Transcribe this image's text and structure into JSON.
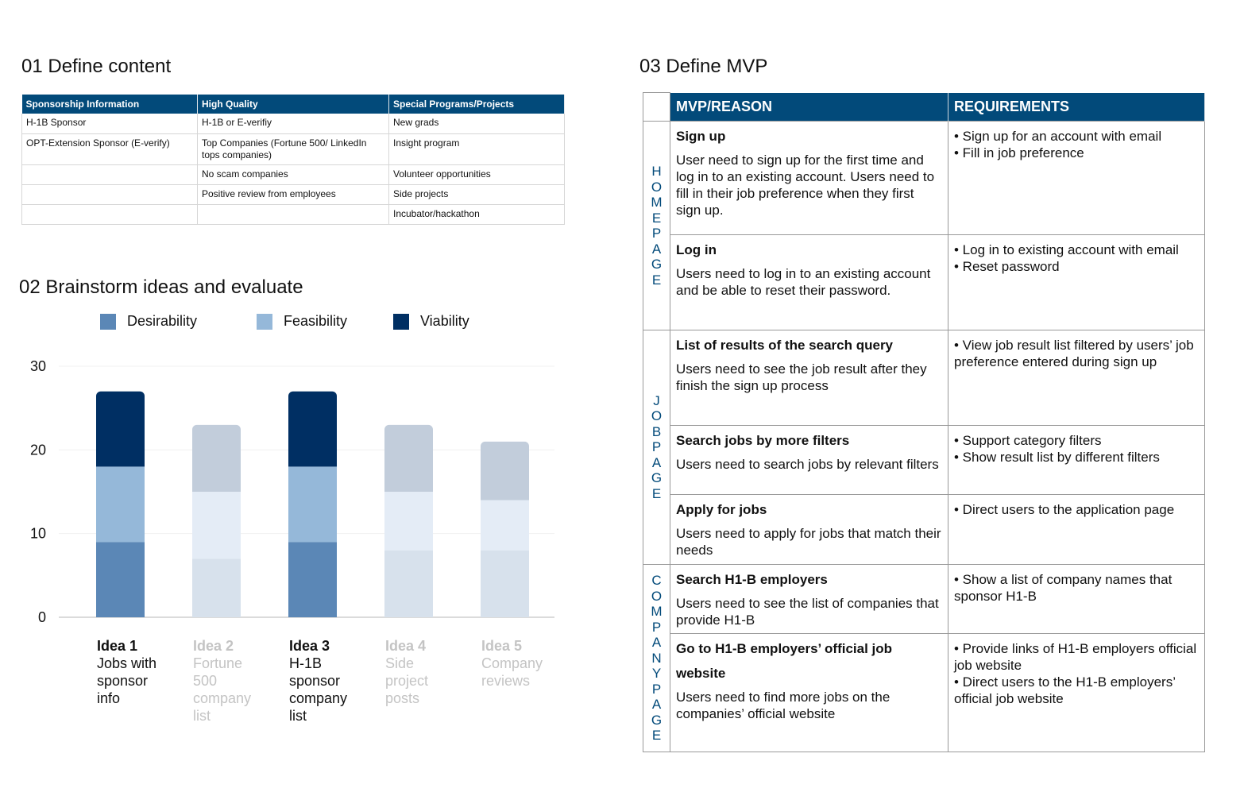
{
  "sections": {
    "s01": "01 Define content",
    "s02": "02 Brainstorm ideas and evaluate",
    "s03": "03 Define MVP"
  },
  "content_table": {
    "headers": [
      "Sponsorship Information",
      "High Quality",
      "Special Programs/Projects"
    ],
    "rows": [
      [
        "H-1B Sponsor",
        "H-1B or E-verifiy",
        "New grads"
      ],
      [
        "OPT-Extension Sponsor (E-verify)",
        "Top Companies (Fortune 500/ LinkedIn tops companies)",
        "Insight program"
      ],
      [
        "",
        "No scam companies",
        "Volunteer opportunities"
      ],
      [
        "",
        "Positive review from employees",
        "Side projects"
      ],
      [
        "",
        "",
        "Incubator/hackathon"
      ]
    ]
  },
  "legend": [
    {
      "label": "Desirability",
      "color": "#5b87b6"
    },
    {
      "label": "Feasibility",
      "color": "#95b8d9"
    },
    {
      "label": "Viability",
      "color": "#002f63"
    }
  ],
  "chart_data": {
    "type": "bar",
    "stacked": true,
    "categories": [
      "Idea 1",
      "Idea 2",
      "Idea 3",
      "Idea 4",
      "Idea 5"
    ],
    "descriptions": [
      "Jobs with sponsor info",
      "Fortune 500 company list",
      "H-1B sponsor company list",
      "Side project posts",
      "Company reviews"
    ],
    "highlighted": [
      true,
      false,
      true,
      false,
      false
    ],
    "series": [
      {
        "name": "Desirability",
        "values": [
          9,
          7,
          9,
          8,
          8
        ]
      },
      {
        "name": "Feasibility",
        "values": [
          9,
          8,
          9,
          7,
          6
        ]
      },
      {
        "name": "Viability",
        "values": [
          9,
          8,
          9,
          8,
          7
        ]
      }
    ],
    "yticks": [
      "0",
      "10",
      "20",
      "30"
    ],
    "ylim": [
      0,
      30
    ],
    "grid": true,
    "faded_colors": [
      "#d7e1ec",
      "#e4ecf6",
      "#c2cddb"
    ],
    "highlight_colors": [
      "#5b87b6",
      "#95b8d9",
      "#002f63"
    ]
  },
  "mvp_table": {
    "headers": [
      "MVP/REASON",
      "REQUIREMENTS"
    ],
    "groups": [
      {
        "page": "HOMEPAGE",
        "rows": [
          {
            "title": "Sign up",
            "reason": "User need to sign up for the first time and log in to an existing account. Users need to fill in their job preference when they first sign up.",
            "requirements": "• Sign up for an account with email\n• Fill in job preference"
          },
          {
            "title": "Log in",
            "reason": "Users need to log in to an existing account and be able to reset their password.",
            "requirements": "• Log in to existing account with email\n• Reset password"
          }
        ]
      },
      {
        "page": "JOBPAGE",
        "rows": [
          {
            "title": "List of results of the search query",
            "reason": "Users need to see the job result after they finish the sign up process",
            "requirements": "• View job result list filtered by users’ job preference entered during sign up"
          },
          {
            "title": "Search jobs by more filters",
            "reason": "Users need to search jobs by relevant filters",
            "requirements": "• Support category filters\n• Show result list by different filters"
          },
          {
            "title": "Apply for jobs",
            "reason": "Users need to apply for jobs that match their needs",
            "requirements": "• Direct users to the application page"
          }
        ]
      },
      {
        "page": "COMPANYPAGE",
        "rows": [
          {
            "title": "Search H1-B employers",
            "reason": "Users need to see the list of companies that provide H1-B",
            "requirements": "• Show a list of company names that sponsor H1-B"
          },
          {
            "title": "Go to H1-B employers’ official job website",
            "reason": "Users need to find more jobs on the companies’ official website",
            "requirements": "• Provide links of H1-B employers official job website\n• Direct users to the H1-B employers’ official job website"
          }
        ]
      }
    ]
  }
}
